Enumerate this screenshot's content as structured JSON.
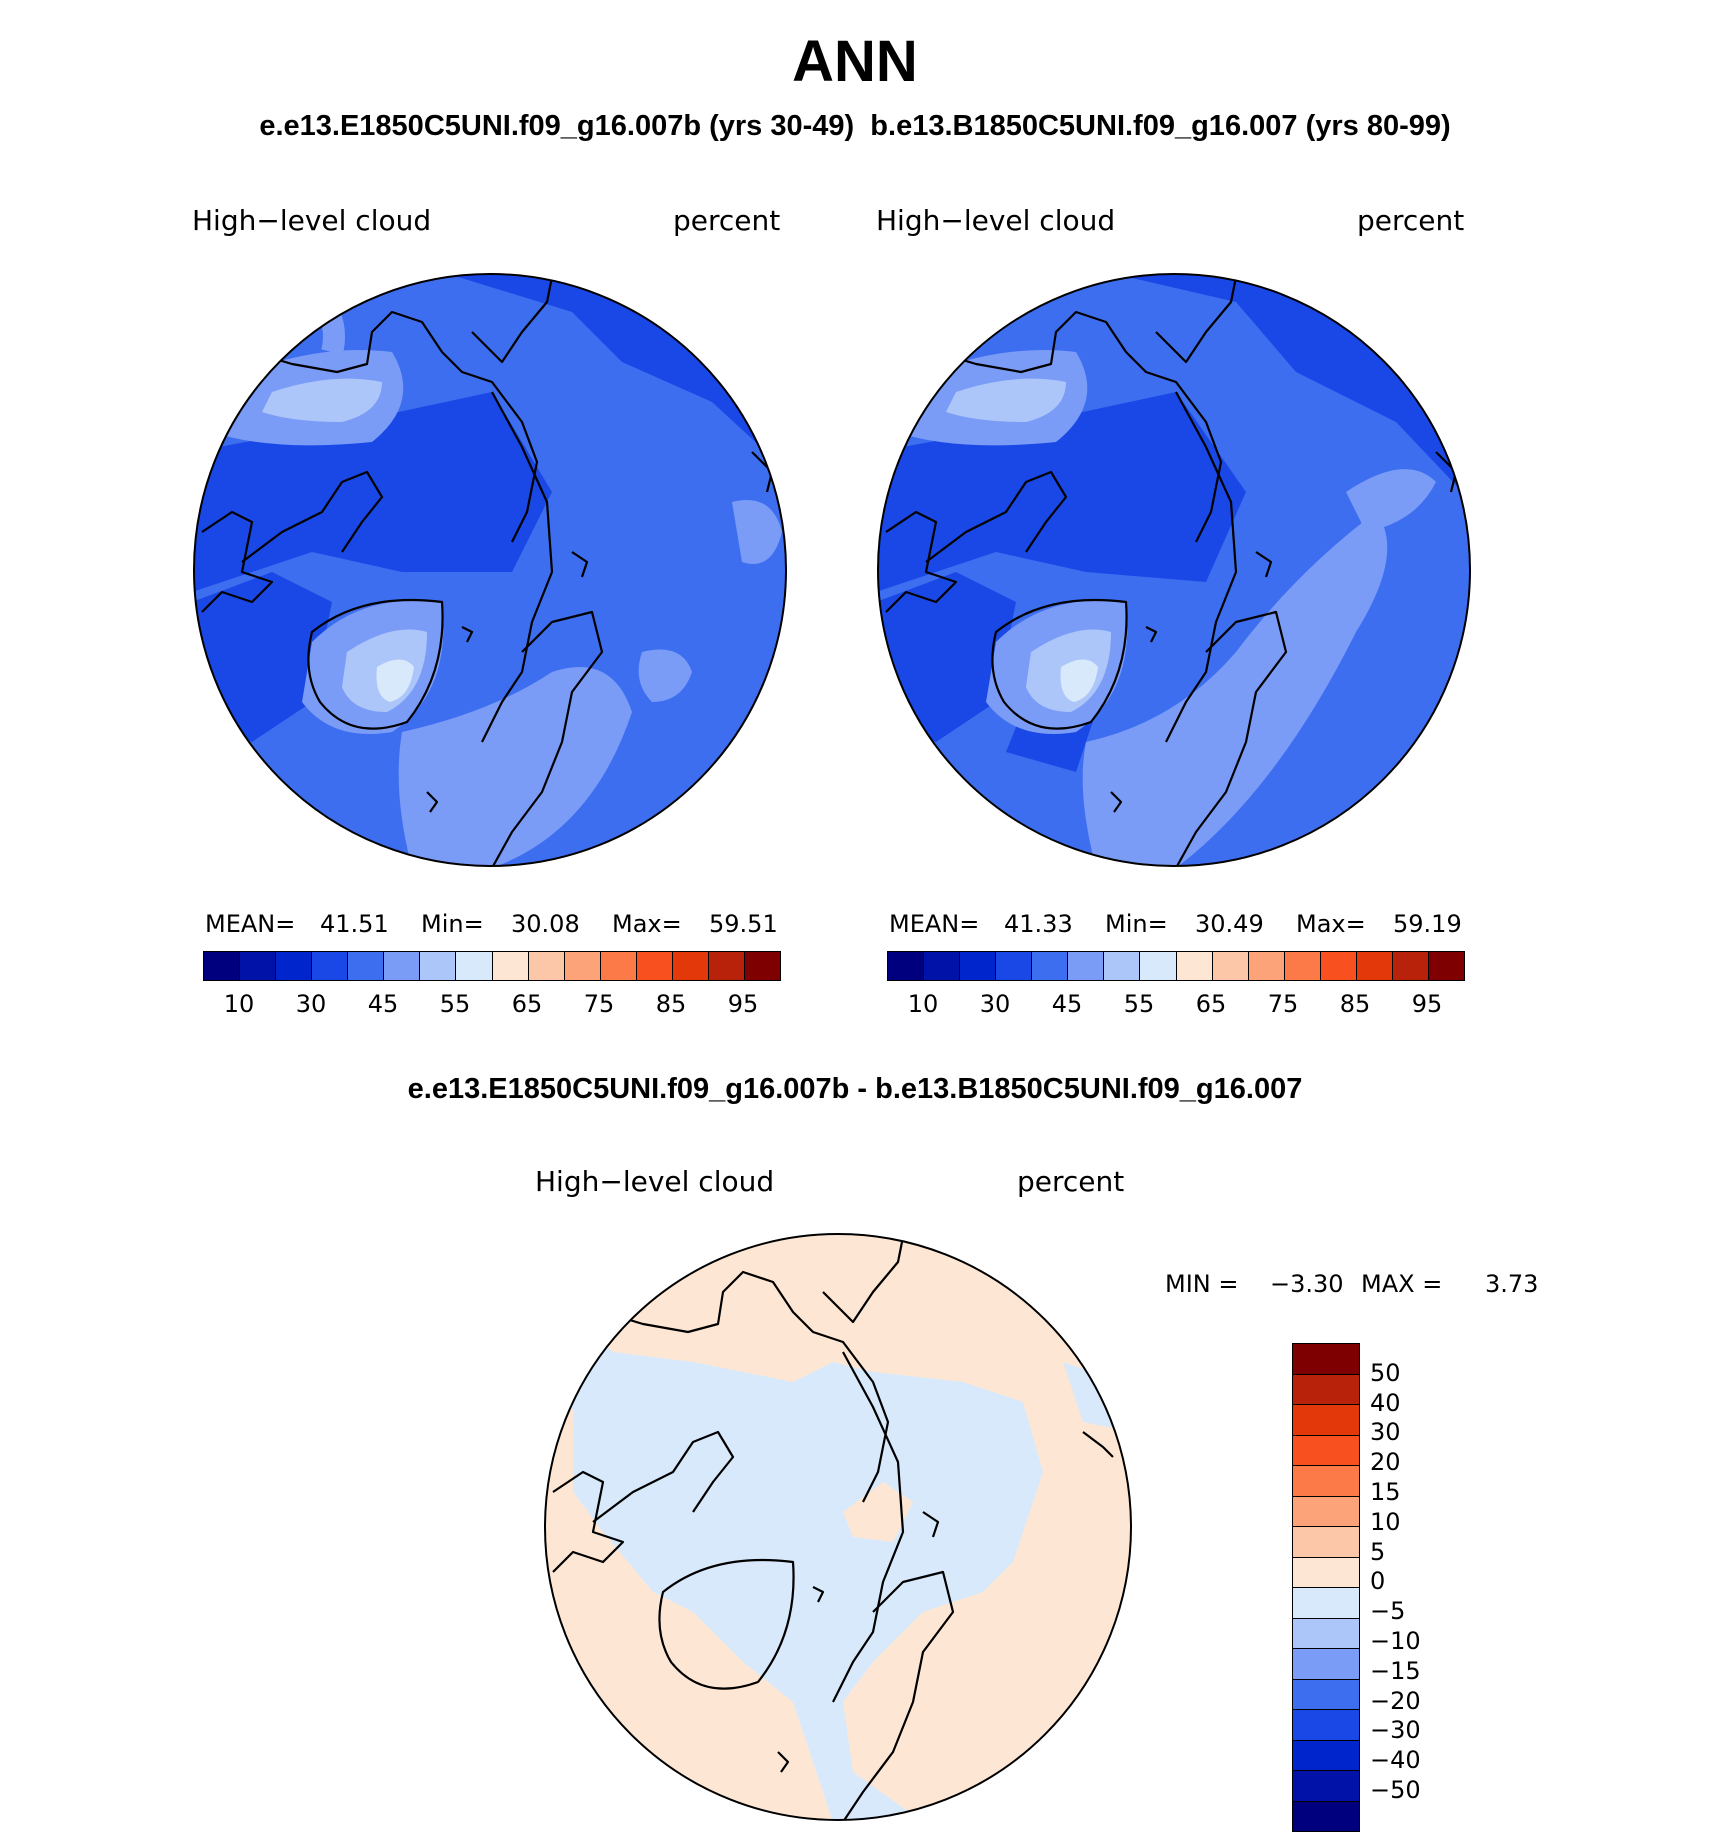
{
  "title": "ANN",
  "subtitle_top": "e.e13.E1850C5UNI.f09_g16.007b (yrs 30-49)  b.e13.B1850C5UNI.f09_g16.007 (yrs 80-99)",
  "subtitle_diff": "e.e13.E1850C5UNI.f09_g16.007b - b.e13.B1850C5UNI.f09_g16.007",
  "panels": [
    {
      "variable": "High−level cloud",
      "units": "percent",
      "mean_label": "MEAN=",
      "mean": "41.51",
      "min_label": "Min=",
      "min": "30.08",
      "max_label": "Max=",
      "max": "59.51"
    },
    {
      "variable": "High−level cloud",
      "units": "percent",
      "mean_label": "MEAN=",
      "mean": "41.33",
      "min_label": "Min=",
      "min": "30.49",
      "max_label": "Max=",
      "max": "59.19"
    }
  ],
  "diff_panel": {
    "variable": "High−level cloud",
    "units": "percent",
    "min_label": "MIN =",
    "min": "−3.30",
    "max_label": "MAX =",
    "max": "3.73"
  },
  "colorbar_main": {
    "colors": [
      "#00007f",
      "#0012a8",
      "#0025cc",
      "#1a48e6",
      "#3e6ef0",
      "#7a9cf7",
      "#adc6fa",
      "#d9e9fc",
      "#fde7d4",
      "#fcc6a8",
      "#fca37a",
      "#fb7a47",
      "#f8501f",
      "#e2380a",
      "#b8220a",
      "#7f0000"
    ],
    "tick_labels": [
      "10",
      "30",
      "45",
      "55",
      "65",
      "75",
      "85",
      "95"
    ]
  },
  "colorbar_diff": {
    "colors": [
      "#7f0000",
      "#b8220a",
      "#e2380a",
      "#f8501f",
      "#fb7a47",
      "#fca37a",
      "#fcc6a8",
      "#fde7d4",
      "#d9e9fc",
      "#adc6fa",
      "#7a9cf7",
      "#3e6ef0",
      "#1a48e6",
      "#0025cc",
      "#0012a8",
      "#00007f"
    ],
    "tick_labels": [
      "50",
      "40",
      "30",
      "20",
      "15",
      "10",
      "5",
      "0",
      "−5",
      "−10",
      "−15",
      "−20",
      "−30",
      "−40",
      "−50"
    ]
  }
}
